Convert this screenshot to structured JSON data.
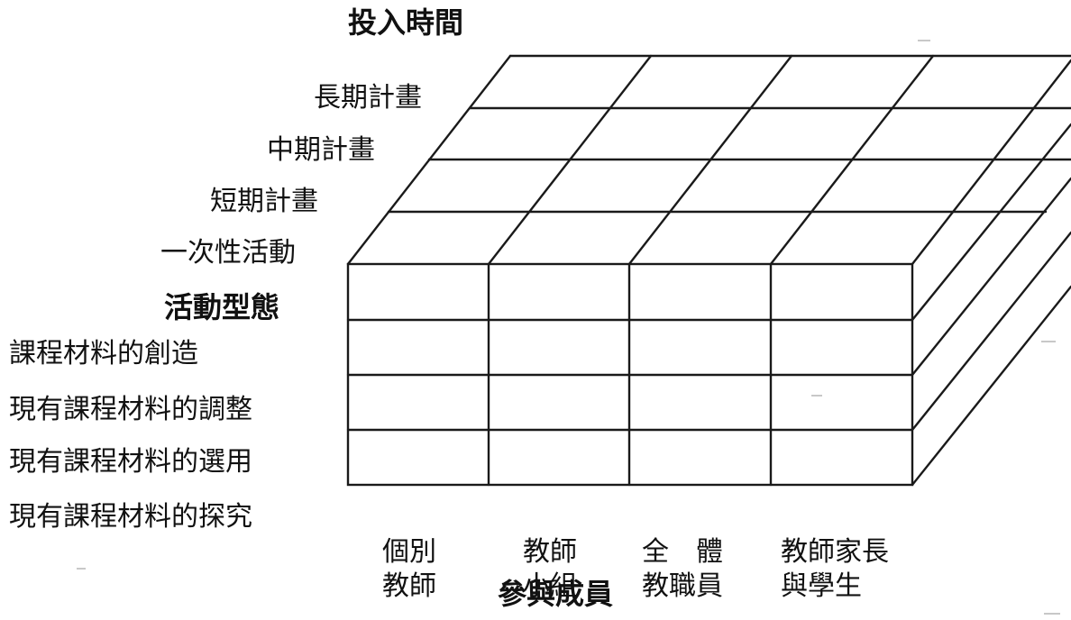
{
  "time_axis": {
    "title": "投入時間",
    "levels": [
      "長期計畫",
      "中期計畫",
      "短期計畫",
      "一次性活動"
    ]
  },
  "activity_axis": {
    "title": "活動型態",
    "rows": [
      "課程材料的創造",
      "現有課程材料的調整",
      "現有課程材料的選用",
      "現有課程材料的探究"
    ]
  },
  "member_axis": {
    "title": "參與成員",
    "columns": [
      {
        "line1": "個別",
        "line2": "教師"
      },
      {
        "line1": "教師",
        "line2": "小組"
      },
      {
        "line1": "全　體",
        "line2": "教職員"
      },
      {
        "line1": "教師家長",
        "line2": "與學生"
      }
    ]
  },
  "colors": {
    "line": "#1a1a1a",
    "text": "#111111",
    "background": "#ffffff"
  }
}
